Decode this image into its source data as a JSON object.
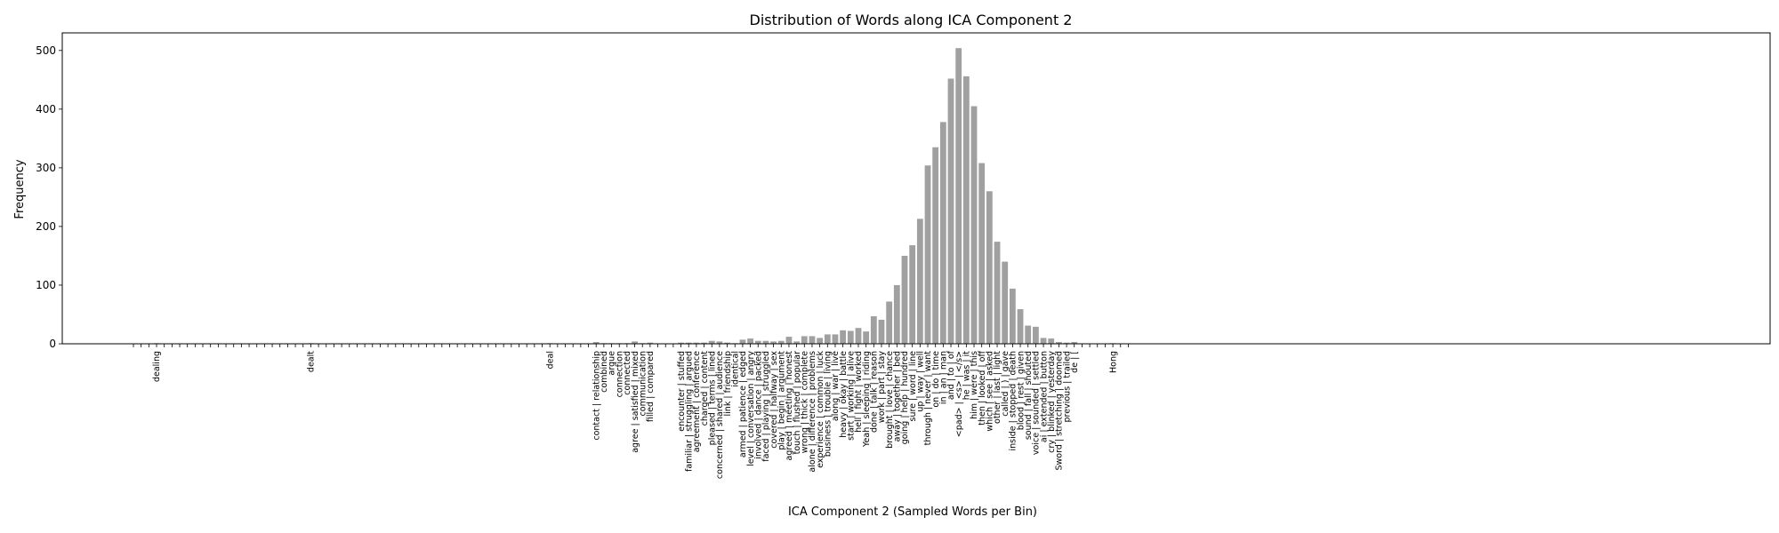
{
  "chart_data": {
    "type": "bar",
    "title": "Distribution of Words along ICA Component 2",
    "xlabel": "ICA Component 2 (Sampled Words per Bin)",
    "ylabel": "Frequency",
    "ylim": [
      0,
      530
    ],
    "yticks": [
      "0",
      "100",
      "200",
      "300",
      "400",
      "500"
    ],
    "bar_color": "#a0a0a0",
    "categories": [
      "",
      "",
      "",
      "dealing",
      "",
      "",
      "",
      "",
      "",
      "",
      "",
      "",
      "",
      "",
      "",
      "",
      "",
      "",
      "",
      "",
      "",
      "",
      "",
      "dealt",
      "",
      "",
      "",
      "",
      "",
      "",
      "",
      "",
      "",
      "",
      "",
      "",
      "",
      "",
      "",
      "",
      "",
      "",
      "",
      "",
      "",
      "",
      "",
      "",
      "",
      "",
      "",
      "",
      "",
      "",
      "deal",
      "",
      "",
      "",
      "",
      "",
      "contact | relationship",
      "combined",
      "argue",
      "connection",
      "connected",
      "agree | satisfied | mixed",
      "communication",
      "filled | compared",
      "",
      "",
      "",
      "encounter | stuffed",
      "familiar | struggling | argued",
      "agreement | conference",
      "charged | content",
      "pleased | terms | lined",
      "concerned | shared | audience",
      "link | friendship",
      "identical",
      "armed | patience | edged",
      "level | conversation | angry",
      "involved | dance | packed",
      "faced | playing | struggled",
      "covered | halfway | sex",
      "play | begin | argument",
      "agreed | meeting | honest",
      "touch | flushed | popular",
      "wrong | thick | complete",
      "alone | difference | problems",
      "experience | common | luck",
      "business | trouble | living",
      "along | war | live",
      "heavy | okay | battle",
      "start | working | alive",
      "hell | fight | worked",
      "Yeah | sleeping | riding",
      "done | talk | reason",
      "work | part | stay",
      "brought | love | chance",
      "away | together | bed",
      "going | help | hundred",
      "sure | word | line",
      "up | way | well",
      "through | never | want",
      "on | do | time",
      "in | an | man",
      "and | to | of",
      "<pad> | <s> | </s>",
      "he | was | it",
      "him | were | this",
      "then | looked | off",
      "which | see | asked",
      "other | last | light",
      "called | ) | gave",
      "inside | stopped | death",
      "blood | rest | given",
      "sound | fall | shouted",
      "voice | sounded | settled",
      "ai | extended | button",
      "cry | blinked | yesterday",
      "Sword | stretching | doomed",
      "previous | trailed",
      "de | [",
      "",
      "",
      "",
      "",
      "Hong",
      "",
      ""
    ],
    "values": [
      0,
      0,
      0,
      1,
      0,
      0,
      0,
      0,
      0,
      0,
      0,
      0,
      0,
      0,
      0,
      0,
      0,
      0,
      0,
      0,
      0,
      0,
      0,
      1,
      0,
      0,
      0,
      0,
      0,
      0,
      0,
      0,
      0,
      0,
      0,
      0,
      0,
      0,
      0,
      0,
      0,
      0,
      0,
      0,
      0,
      0,
      0,
      0,
      0,
      0,
      0,
      0,
      0,
      0,
      1,
      0,
      0,
      0,
      0,
      0,
      3,
      1,
      1,
      1,
      1,
      4,
      1,
      2,
      0,
      0,
      0,
      2,
      2,
      2,
      2,
      5,
      4,
      2,
      1,
      7,
      9,
      5,
      5,
      4,
      5,
      12,
      4,
      13,
      13,
      10,
      16,
      16,
      23,
      22,
      27,
      21,
      47,
      41,
      72,
      100,
      150,
      168,
      213,
      304,
      335,
      378,
      452,
      504,
      456,
      405,
      308,
      260,
      174,
      140,
      94,
      59,
      31,
      29,
      10,
      9,
      3,
      2,
      3,
      0,
      0,
      0,
      0,
      1,
      0,
      0
    ]
  }
}
